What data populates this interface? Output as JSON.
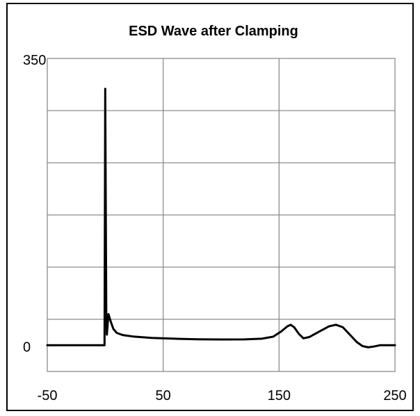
{
  "chart_data": {
    "type": "line",
    "title": "ESD Wave after Clamping",
    "xlabel": "",
    "ylabel": "",
    "xlim": [
      -50,
      250
    ],
    "ylim": [
      -32,
      350
    ],
    "x_ticks": [
      -50,
      50,
      150,
      250
    ],
    "y_ticks": [
      350,
      0
    ],
    "grid": true,
    "legend": "none",
    "colors": {
      "line": "#000000",
      "grid": "#8c8c8c",
      "frame": "#000000"
    },
    "series": [
      {
        "x": [
          -50,
          -0.6,
          0,
          0.9,
          1.4,
          2.8,
          4.5,
          7,
          10,
          15,
          25,
          40,
          60,
          80,
          100,
          120,
          135,
          145,
          152,
          157,
          160,
          163,
          167,
          171,
          176,
          185,
          193,
          199,
          205,
          211,
          217,
          222,
          227,
          232,
          237,
          250
        ],
        "y": [
          0,
          0,
          313,
          40,
          13,
          38,
          30,
          20,
          15,
          12.5,
          10.5,
          9,
          8,
          7.3,
          7,
          7.2,
          8,
          10.5,
          17,
          23,
          25,
          22,
          14,
          8.5,
          10,
          17,
          23,
          25,
          22,
          13,
          4,
          -1,
          -2.5,
          -1.5,
          0,
          0
        ]
      }
    ]
  }
}
